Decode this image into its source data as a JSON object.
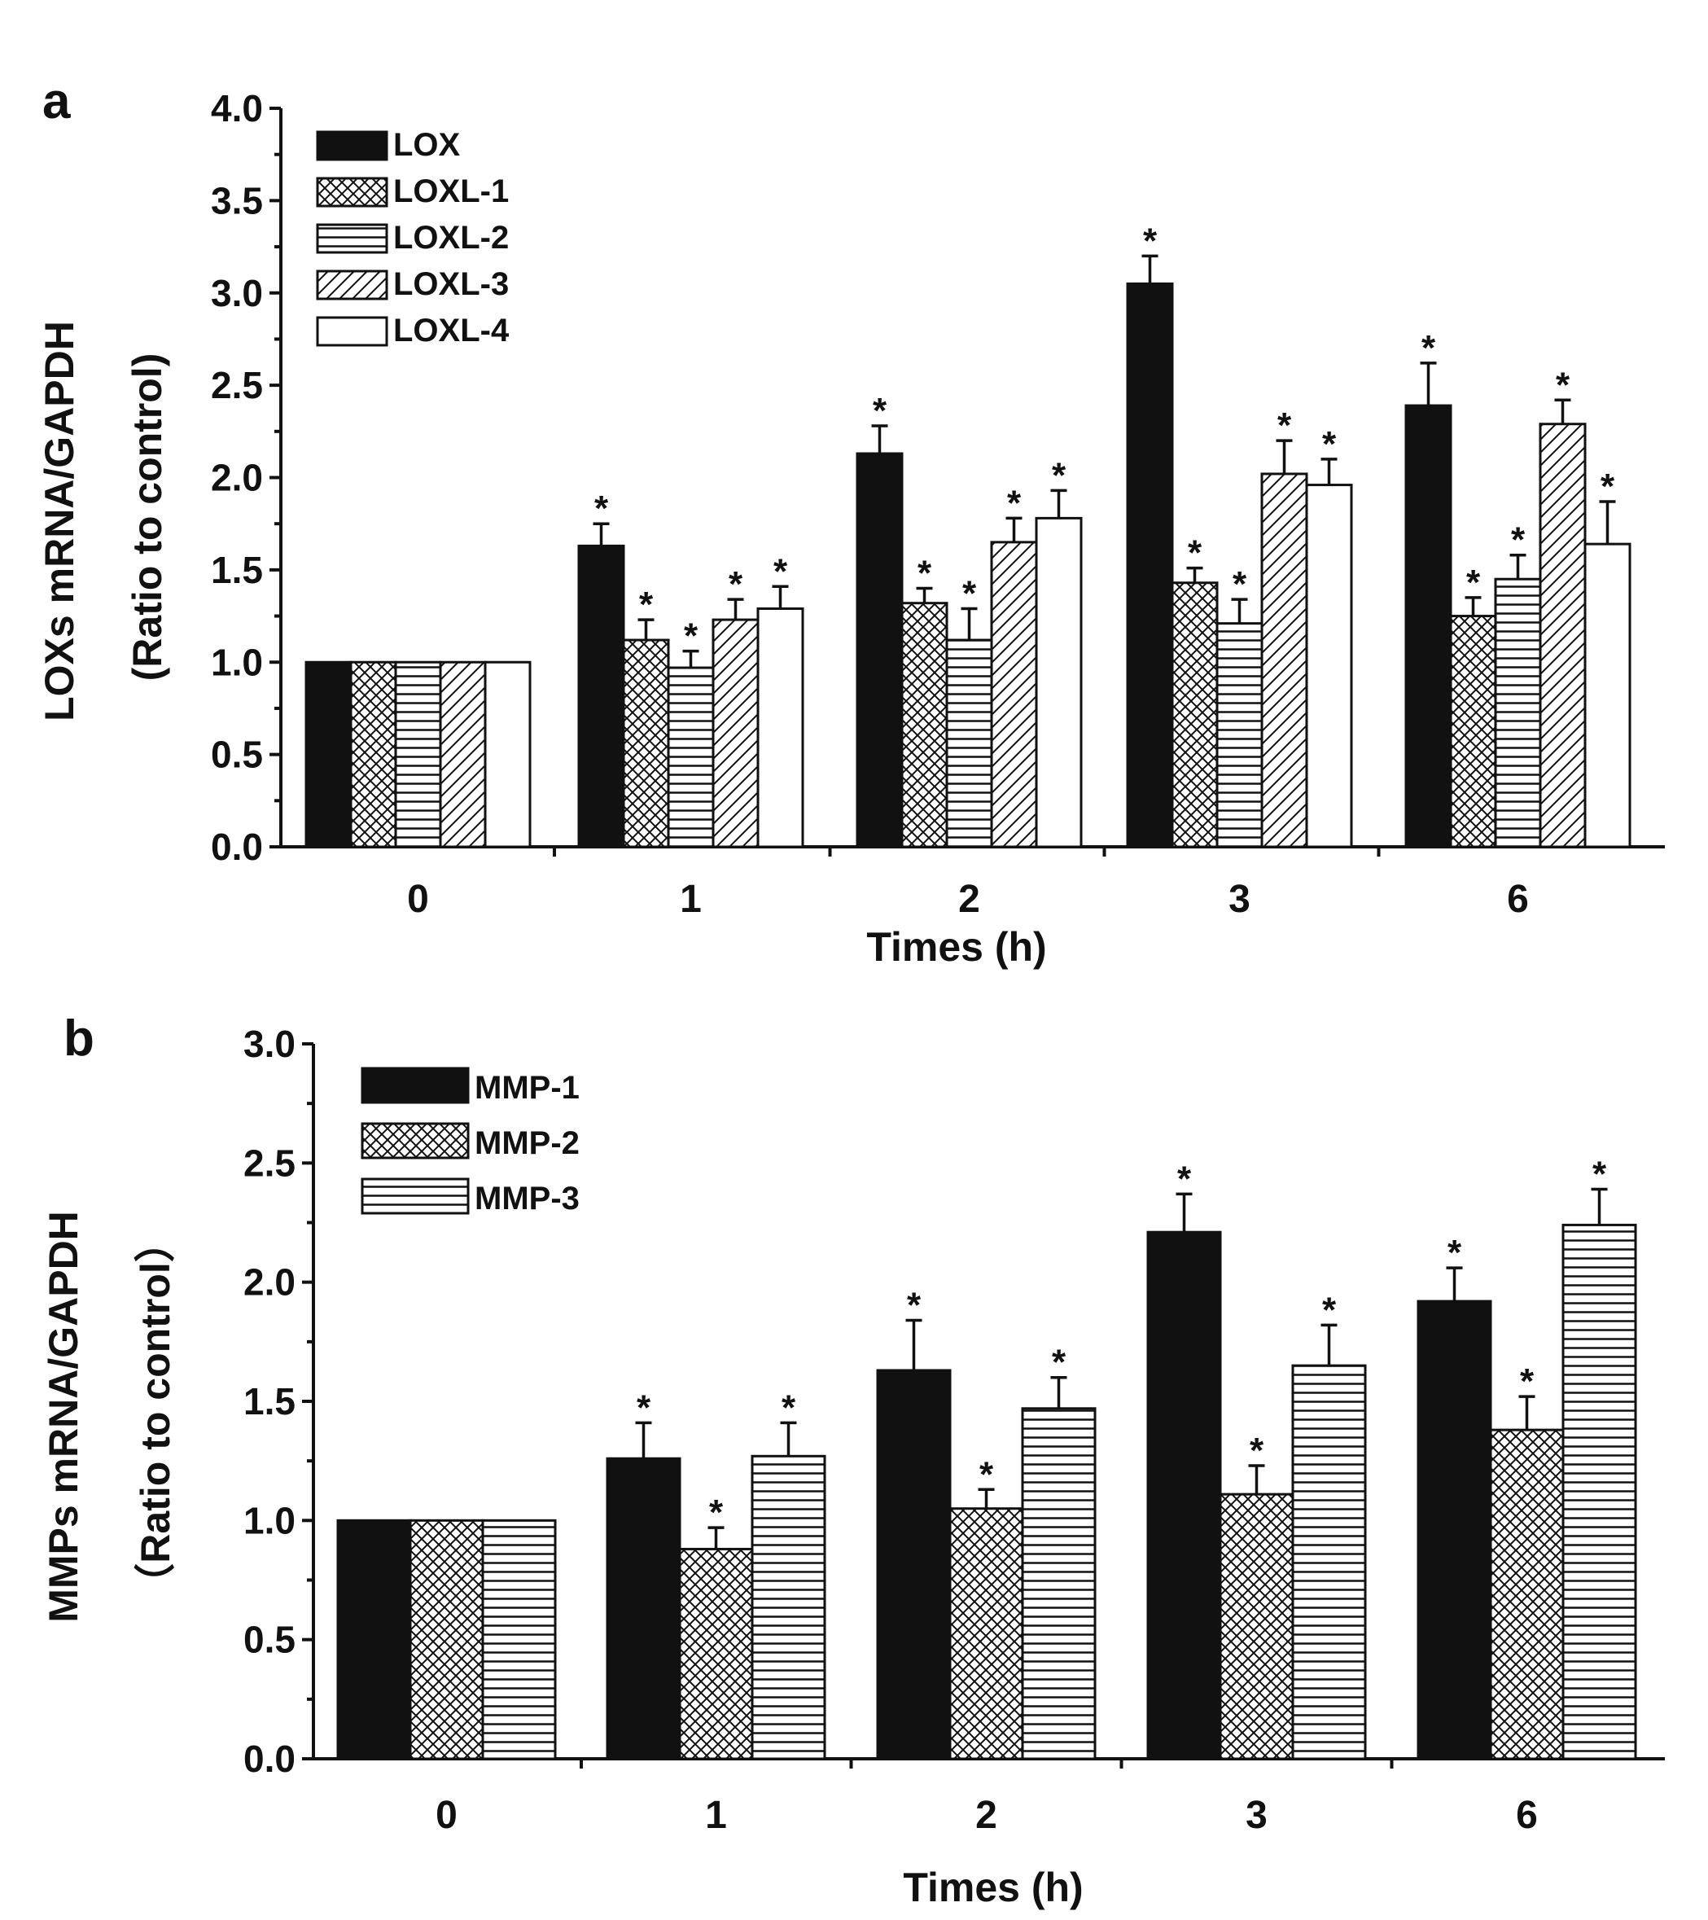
{
  "chart_data": [
    {
      "type": "bar",
      "panel_label": "a",
      "xlabel": "Times (h)",
      "ylabel": "LOXs mRNA/GAPDH",
      "ylabel2": "(Ratio to control)",
      "ylim": [
        0,
        4.0
      ],
      "yticks": [
        "0.0",
        "0.5",
        "1.0",
        "1.5",
        "2.0",
        "2.5",
        "3.0",
        "3.5",
        "4.0"
      ],
      "categories": [
        "0",
        "1",
        "2",
        "3",
        "6"
      ],
      "legend_position": "top-left",
      "series": [
        {
          "name": "LOX",
          "pattern": "solid",
          "values": [
            1.0,
            1.63,
            2.13,
            3.05,
            2.39
          ],
          "errors": [
            0,
            0.12,
            0.15,
            0.15,
            0.23
          ],
          "significant": [
            false,
            true,
            true,
            true,
            true
          ]
        },
        {
          "name": "LOXL-1",
          "pattern": "cross",
          "values": [
            1.0,
            1.12,
            1.32,
            1.43,
            1.25
          ],
          "errors": [
            0,
            0.11,
            0.08,
            0.08,
            0.1
          ],
          "significant": [
            false,
            true,
            true,
            true,
            true
          ]
        },
        {
          "name": "LOXL-2",
          "pattern": "hlines",
          "values": [
            1.0,
            0.97,
            1.12,
            1.21,
            1.45
          ],
          "errors": [
            0,
            0.09,
            0.17,
            0.13,
            0.13
          ],
          "significant": [
            false,
            true,
            true,
            true,
            true
          ]
        },
        {
          "name": "LOXL-3",
          "pattern": "diag",
          "values": [
            1.0,
            1.23,
            1.65,
            2.02,
            2.29
          ],
          "errors": [
            0,
            0.11,
            0.13,
            0.18,
            0.13
          ],
          "significant": [
            false,
            true,
            true,
            true,
            true
          ]
        },
        {
          "name": "LOXL-4",
          "pattern": "white",
          "values": [
            1.0,
            1.29,
            1.78,
            1.96,
            1.64
          ],
          "errors": [
            0,
            0.12,
            0.15,
            0.14,
            0.23
          ],
          "significant": [
            false,
            true,
            true,
            true,
            true
          ]
        }
      ],
      "marker": "*"
    },
    {
      "type": "bar",
      "panel_label": "b",
      "xlabel": "Times (h)",
      "ylabel": "MMPs mRNA/GAPDH",
      "ylabel2": "（Ratio to control）",
      "ylim": [
        0,
        3.0
      ],
      "yticks": [
        "0.0",
        "0.5",
        "1.0",
        "1.5",
        "2.0",
        "2.5",
        "3.0"
      ],
      "categories": [
        "0",
        "1",
        "2",
        "3",
        "6"
      ],
      "legend_position": "top-left",
      "series": [
        {
          "name": "MMP-1",
          "pattern": "solid",
          "values": [
            1.0,
            1.26,
            1.63,
            2.21,
            1.92
          ],
          "errors": [
            0,
            0.15,
            0.21,
            0.16,
            0.14
          ],
          "significant": [
            false,
            true,
            true,
            true,
            true
          ]
        },
        {
          "name": "MMP-2",
          "pattern": "cross",
          "values": [
            1.0,
            0.88,
            1.05,
            1.11,
            1.38
          ],
          "errors": [
            0,
            0.09,
            0.08,
            0.12,
            0.14
          ],
          "significant": [
            false,
            true,
            true,
            true,
            true
          ]
        },
        {
          "name": "MMP-3",
          "pattern": "hlines",
          "values": [
            1.0,
            1.27,
            1.47,
            1.65,
            2.24
          ],
          "errors": [
            0,
            0.14,
            0.13,
            0.17,
            0.15
          ],
          "significant": [
            false,
            true,
            true,
            true,
            true
          ]
        }
      ],
      "marker": "*"
    }
  ]
}
